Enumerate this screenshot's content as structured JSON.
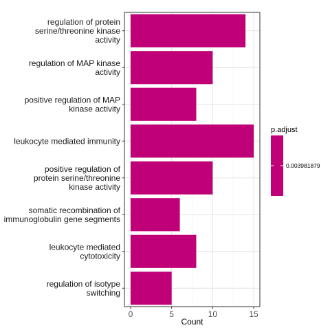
{
  "chart_data": {
    "type": "bar",
    "orientation": "horizontal",
    "categories": [
      [
        "regulation of protein",
        "serine/threonine kinase",
        "activity"
      ],
      [
        "regulation of MAP kinase",
        "activity"
      ],
      [
        "positive regulation of MAP",
        "kinase activity"
      ],
      [
        "leukocyte mediated immunity"
      ],
      [
        "positive regulation of",
        "protein serine/threonine",
        "kinase activity"
      ],
      [
        "somatic recombination of",
        "immunoglobulin gene segments"
      ],
      [
        "leukocyte mediated",
        "cytotoxicity"
      ],
      [
        "regulation of isotype",
        "switching"
      ]
    ],
    "values": [
      14,
      10,
      8,
      15,
      10,
      6,
      8,
      5
    ],
    "xlabel": "Count",
    "ylabel": "",
    "xlim": [
      -0.75,
      15.75
    ],
    "xticks": [
      0,
      5,
      10,
      15
    ],
    "grid": true,
    "bar_color": "#BF0076",
    "legend": {
      "title": "p.adjust",
      "value_label": "0.003981879",
      "color": "#BF0076",
      "placement": "right"
    }
  }
}
